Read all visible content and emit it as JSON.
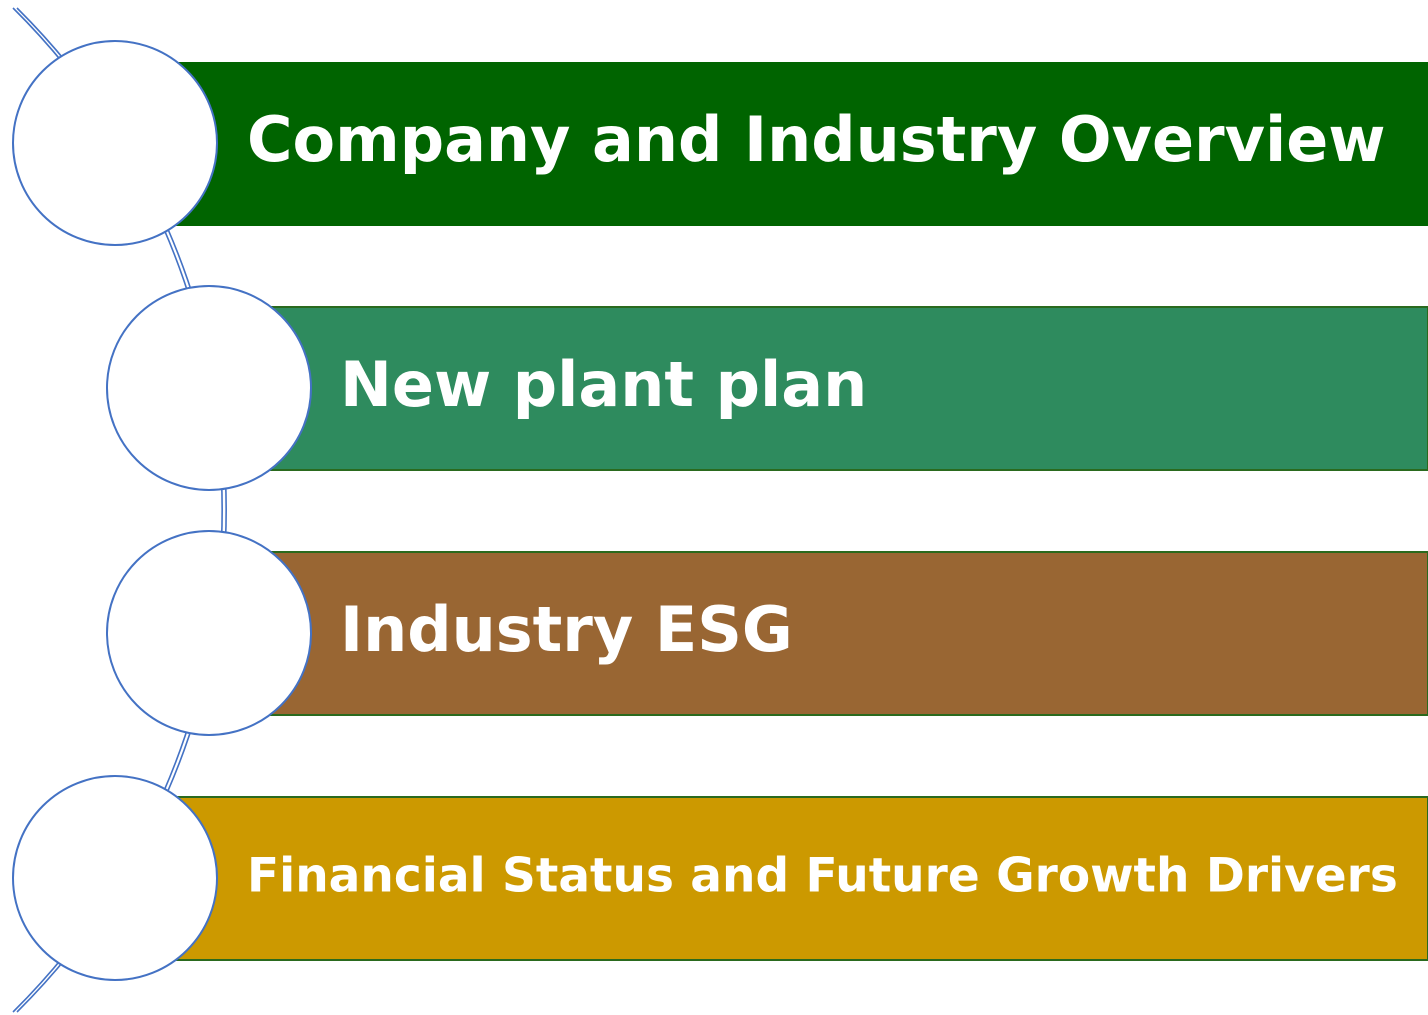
{
  "items": [
    {
      "label": "Company and Industry Overview"
    },
    {
      "label": "New plant plan"
    },
    {
      "label": "Industry ESG"
    },
    {
      "label": "Financial Status and Future Growth Drivers"
    }
  ]
}
